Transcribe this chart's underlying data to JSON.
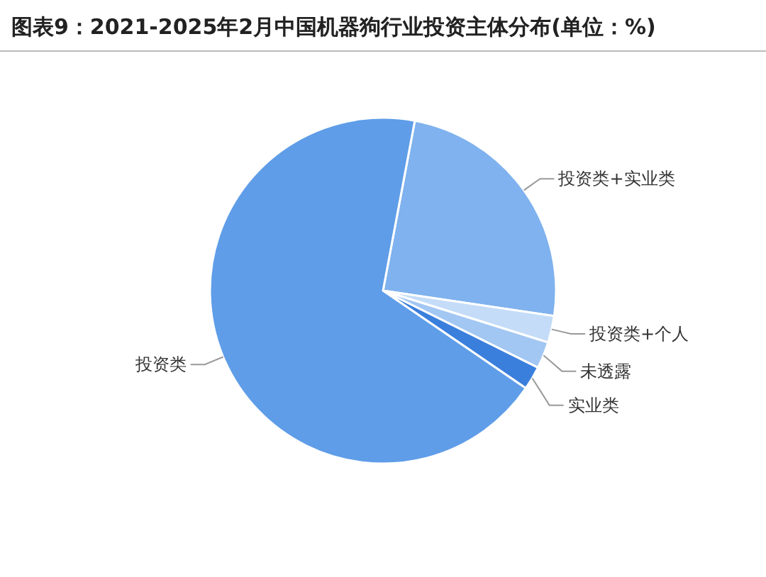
{
  "chart_data": {
    "type": "pie",
    "title": "图表9：2021-2025年2月中国机器狗行业投资主体分布(单位：%)",
    "categories": [
      "投资类+实业类",
      "投资类+个人",
      "未透露",
      "实业类",
      "投资类"
    ],
    "values": [
      24.4,
      2.5,
      2.5,
      2.2,
      68.4
    ],
    "colors": [
      "#7fb2ee",
      "#c4dcf8",
      "#a3c7f3",
      "#3b7fdc",
      "#5f9de8"
    ]
  }
}
